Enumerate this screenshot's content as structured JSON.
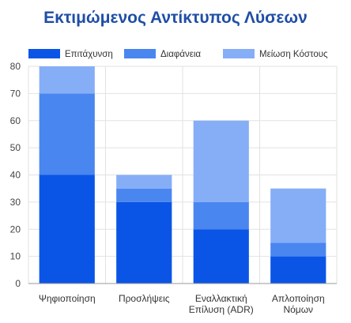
{
  "chart_data": {
    "type": "bar",
    "stacked": true,
    "title": "Εκτιμώμενος Αντίκτυπος Λύσεων",
    "xlabel": "",
    "ylabel": "",
    "ylim": [
      0,
      80
    ],
    "yticks": [
      0,
      10,
      20,
      30,
      40,
      50,
      60,
      70,
      80
    ],
    "grid": true,
    "legend_position": "top",
    "categories": [
      [
        "Ψηφιοποίηση"
      ],
      [
        "Προσλήψεις"
      ],
      [
        "Εναλλακτική",
        "Επίλυση (ADR)"
      ],
      [
        "Απλοποίηση",
        "Νόμων"
      ]
    ],
    "series": [
      {
        "name": "Επιτάχυνση",
        "color": "#0a55e6",
        "values": [
          40,
          30,
          20,
          10
        ]
      },
      {
        "name": "Διαφάνεια",
        "color": "#4a86f0",
        "values": [
          30,
          5,
          10,
          5
        ]
      },
      {
        "name": "Μείωση Κόστους",
        "color": "#86aef7",
        "values": [
          10,
          5,
          30,
          20
        ]
      }
    ]
  }
}
